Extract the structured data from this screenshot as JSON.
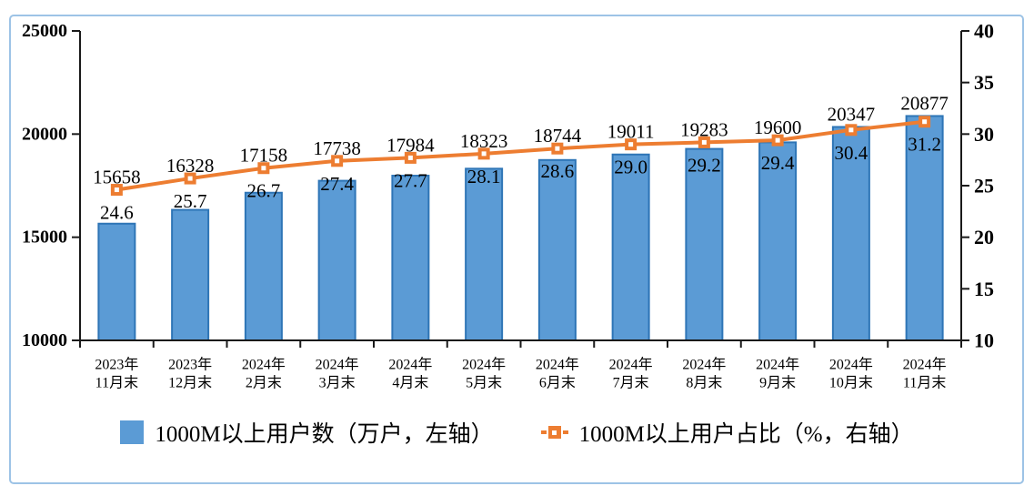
{
  "chart_data": {
    "type": "combo",
    "categories": [
      {
        "line1": "2023年",
        "line2": "11月末"
      },
      {
        "line1": "2023年",
        "line2": "12月末"
      },
      {
        "line1": "2024年",
        "line2": "2月末"
      },
      {
        "line1": "2024年",
        "line2": "3月末"
      },
      {
        "line1": "2024年",
        "line2": "4月末"
      },
      {
        "line1": "2024年",
        "line2": "5月末"
      },
      {
        "line1": "2024年",
        "line2": "6月末"
      },
      {
        "line1": "2024年",
        "line2": "7月末"
      },
      {
        "line1": "2024年",
        "line2": "8月末"
      },
      {
        "line1": "2024年",
        "line2": "9月末"
      },
      {
        "line1": "2024年",
        "line2": "10月末"
      },
      {
        "line1": "2024年",
        "line2": "11月末"
      }
    ],
    "series": [
      {
        "name": "1000M以上用户数（万户，左轴）",
        "type": "bar",
        "axis": "left",
        "values": [
          15658,
          16328,
          17158,
          17738,
          17984,
          18323,
          18744,
          19011,
          19283,
          19600,
          20347,
          20877
        ],
        "fill": "#5B9BD5",
        "stroke": "#2E75B6"
      },
      {
        "name": "1000M以上用户占比（%，右轴）",
        "type": "line",
        "axis": "right",
        "values": [
          24.6,
          25.7,
          26.7,
          27.4,
          27.7,
          28.1,
          28.6,
          29.0,
          29.2,
          29.4,
          30.4,
          31.2
        ],
        "color": "#ED7D31"
      }
    ],
    "axes": {
      "left": {
        "min": 10000,
        "max": 25000,
        "ticks": [
          25000,
          20000,
          15000,
          10000
        ]
      },
      "right": {
        "min": 10,
        "max": 40,
        "ticks": [
          40,
          35,
          30,
          25,
          20,
          15,
          10
        ]
      }
    },
    "grid": false,
    "legend_position": "bottom"
  },
  "colors": {
    "frame_border": "#9DC3E6",
    "axis": "#1a1a1a",
    "bar_fill": "#5B9BD5",
    "bar_stroke": "#2E75B6",
    "line": "#ED7D31"
  }
}
